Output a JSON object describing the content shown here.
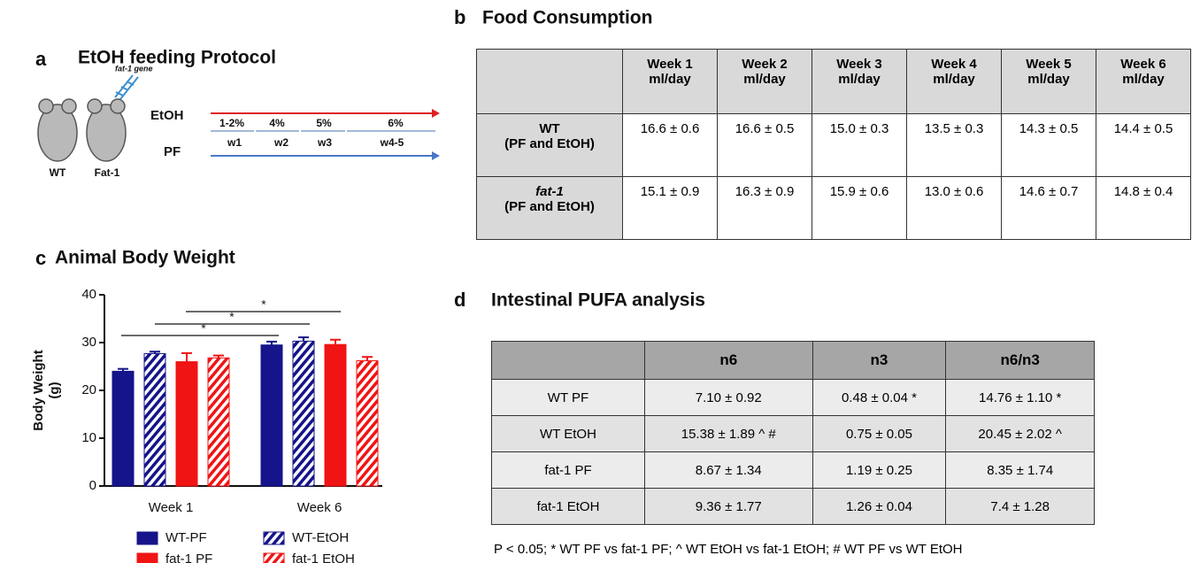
{
  "panel_a": {
    "letter": "a",
    "title": "EtOH feeding Protocol",
    "gene_label": "fat-1 gene",
    "mice": [
      "WT",
      "Fat-1"
    ],
    "groups": [
      "EtOH",
      "PF"
    ],
    "doses": [
      "1-2%",
      "4%",
      "5%",
      "6%"
    ],
    "weeks": [
      "w1",
      "w2",
      "w3",
      "w4-5"
    ]
  },
  "panel_b": {
    "letter": "b",
    "title": "Food Consumption",
    "header": [
      [
        "Week 1",
        "ml/day"
      ],
      [
        "Week 2",
        "ml/day"
      ],
      [
        "Week 3",
        "ml/day"
      ],
      [
        "Week 4",
        "ml/day"
      ],
      [
        "Week 5",
        "ml/day"
      ],
      [
        "Week 6",
        "ml/day"
      ]
    ],
    "rows": [
      {
        "label": [
          "WT",
          "(PF and EtOH)"
        ],
        "cells": [
          "16.6 ± 0.6",
          "16.6 ± 0.5",
          "15.0 ± 0.3",
          "13.5 ± 0.3",
          "14.3 ± 0.5",
          "14.4 ± 0.5"
        ]
      },
      {
        "label": [
          "fat-1",
          "(PF and EtOH)"
        ],
        "cells": [
          "15.1 ± 0.9",
          "16.3 ± 0.9",
          "15.9 ± 0.6",
          "13.0 ± 0.6",
          "14.6 ± 0.7",
          "14.8 ± 0.4"
        ]
      }
    ]
  },
  "chart_data": {
    "type": "bar",
    "letter": "c",
    "title": "Animal Body Weight",
    "y_label": [
      "Body Weight",
      "(g)"
    ],
    "categories": [
      "Week 1",
      "Week 6"
    ],
    "series": [
      {
        "name": "WT-PF",
        "color": "#15148a",
        "hatch": false,
        "values": [
          24,
          29.5
        ],
        "errors": [
          0.5,
          0.7
        ]
      },
      {
        "name": "WT-EtOH",
        "color": "#15148a",
        "hatch": true,
        "values": [
          27.7,
          30.3
        ],
        "errors": [
          0.4,
          0.8
        ]
      },
      {
        "name": "fat-1 PF",
        "color": "#f01414",
        "hatch": false,
        "values": [
          26,
          29.6
        ],
        "errors": [
          1.8,
          1.0
        ]
      },
      {
        "name": "fat-1 EtOH",
        "color": "#f01414",
        "hatch": true,
        "values": [
          26.8,
          26.2
        ],
        "errors": [
          0.5,
          0.8
        ]
      }
    ],
    "ylim": [
      0,
      40
    ],
    "yticks": [
      0,
      10,
      20,
      30,
      40
    ],
    "annotations": [
      "*",
      "*",
      "*"
    ]
  },
  "panel_d": {
    "letter": "d",
    "title": "Intestinal PUFA analysis",
    "header": [
      "n6",
      "n3",
      "n6/n3"
    ],
    "rows": [
      {
        "label": "WT PF",
        "cells": [
          "7.10 ± 0.92",
          "0.48 ± 0.04 *",
          "14.76 ± 1.10 *"
        ]
      },
      {
        "label": "WT EtOH",
        "cells": [
          "15.38 ± 1.89 ^ #",
          "0.75 ± 0.05",
          "20.45 ± 2.02 ^"
        ]
      },
      {
        "label": "fat-1 PF",
        "cells": [
          "8.67 ± 1.34",
          "1.19 ± 0.25",
          "8.35 ± 1.74"
        ]
      },
      {
        "label": "fat-1 EtOH",
        "cells": [
          "9.36 ± 1.77",
          "1.26 ± 0.04",
          "7.4 ± 1.28"
        ]
      }
    ],
    "footnote": "P < 0.05; * WT PF vs fat-1 PF; ^ WT EtOH vs fat-1 EtOH; # WT PF vs WT EtOH"
  }
}
